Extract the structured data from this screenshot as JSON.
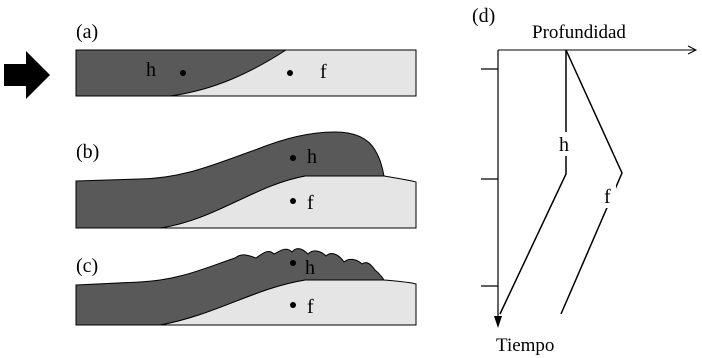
{
  "panels": {
    "a": {
      "label": "(a)",
      "marker_h": "h",
      "marker_f": "f"
    },
    "b": {
      "label": "(b)",
      "marker_h": "h",
      "marker_f": "f"
    },
    "c": {
      "label": "(c)",
      "marker_h": "h",
      "marker_f": "f"
    }
  },
  "plot": {
    "label": "(d)",
    "x_axis_label": "Profundidad",
    "y_axis_label": "Tiempo",
    "curve_h_label": "h",
    "curve_f_label": "f"
  },
  "colors": {
    "dark_layer": "#595959",
    "light_layer": "#e5e5e5",
    "stroke": "#000000",
    "arrow": "#000000"
  }
}
